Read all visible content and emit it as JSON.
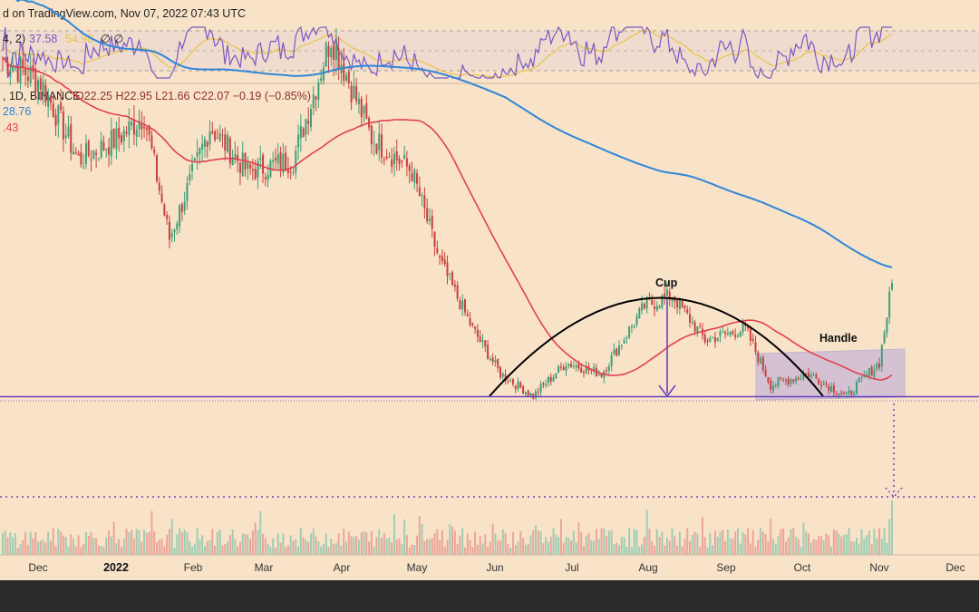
{
  "header": {
    "published": "d on TradingView.com, Nov 07, 2022 07:43 UTC",
    "rsi_params": "4, 2)",
    "rsi_value": "37.58",
    "rsi_ma_value": "54.90",
    "rsi_empty": "∅ ∅",
    "symbol": ", 1D, BINANCE",
    "ohlc": "O22.25 H22.95 L21.66 C22.07 −0.19 (−0.85%)",
    "ma_200_value": "28.76",
    "ma_50_value": ".43"
  },
  "annotations": {
    "cup": "Cup",
    "handle": "Handle"
  },
  "colors": {
    "background": "#f8e3c8",
    "candle_up": "#3e9e78",
    "candle_down": "#c8403e",
    "ma_50": "#e0414f",
    "ma_200": "#2f86d8",
    "rsi_line": "#7b57c4",
    "rsi_ma": "#e7c34a",
    "support_line": "#6b3fc0",
    "target_line": "#7b3fc0",
    "pattern_box": "#b7a8dc"
  },
  "chart_data": {
    "type": "candlestick",
    "title": "",
    "x_ticks": [
      "Dec",
      "2022",
      "Feb",
      "Mar",
      "Apr",
      "May",
      "Jun",
      "Jul",
      "Aug",
      "Sep",
      "Oct",
      "Nov",
      "Dec"
    ],
    "close_series": [
      {
        "date": "2021-11-20",
        "close": 42
      },
      {
        "date": "2021-12-05",
        "close": 40
      },
      {
        "date": "2021-12-20",
        "close": 33
      },
      {
        "date": "2022-01-05",
        "close": 35
      },
      {
        "date": "2022-01-15",
        "close": 37
      },
      {
        "date": "2022-01-25",
        "close": 26
      },
      {
        "date": "2022-02-10",
        "close": 36
      },
      {
        "date": "2022-02-25",
        "close": 32
      },
      {
        "date": "2022-03-15",
        "close": 33
      },
      {
        "date": "2022-03-30",
        "close": 44
      },
      {
        "date": "2022-04-15",
        "close": 35
      },
      {
        "date": "2022-05-01",
        "close": 32
      },
      {
        "date": "2022-05-12",
        "close": 24
      },
      {
        "date": "2022-05-25",
        "close": 18
      },
      {
        "date": "2022-06-05",
        "close": 14
      },
      {
        "date": "2022-06-18",
        "close": 12
      },
      {
        "date": "2022-07-01",
        "close": 15
      },
      {
        "date": "2022-07-15",
        "close": 14
      },
      {
        "date": "2022-08-01",
        "close": 20
      },
      {
        "date": "2022-08-12",
        "close": 21
      },
      {
        "date": "2022-08-25",
        "close": 17
      },
      {
        "date": "2022-09-10",
        "close": 18
      },
      {
        "date": "2022-09-20",
        "close": 13
      },
      {
        "date": "2022-10-05",
        "close": 14
      },
      {
        "date": "2022-10-20",
        "close": 12
      },
      {
        "date": "2022-11-02",
        "close": 15
      },
      {
        "date": "2022-11-07",
        "close": 22.07
      }
    ],
    "ma_50": {
      "name": "MA 50"
    },
    "ma_200": {
      "name": "MA 200"
    },
    "last_ohlc": {
      "open": 22.25,
      "high": 22.95,
      "low": 21.66,
      "close": 22.07,
      "change": -0.19,
      "change_pct": -0.85
    },
    "rsi": {
      "value": 37.58,
      "ma": 54.9
    },
    "volume": "relative daily volume, spike on Nov 7",
    "grid": false
  }
}
